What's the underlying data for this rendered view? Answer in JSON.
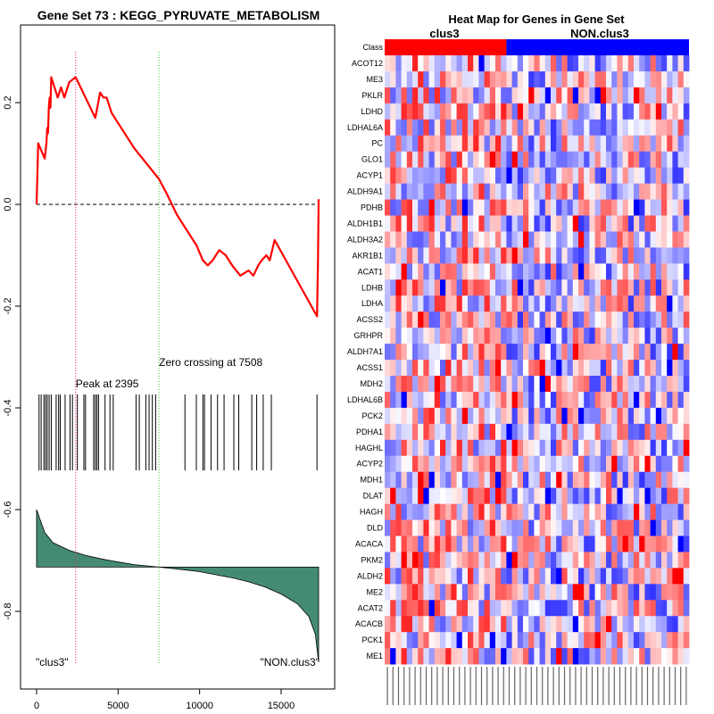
{
  "chart_data": [
    {
      "type": "line",
      "title": "Gene Set  73 : KEGG_PYRUVATE_METABOLISM",
      "xlim": [
        0,
        17400
      ],
      "ylim": [
        -0.92,
        0.32
      ],
      "x_ticks": [
        0,
        5000,
        10000,
        15000
      ],
      "y_ticks": [
        0.2,
        0.0,
        -0.2,
        -0.4,
        -0.6,
        -0.8
      ],
      "x_tick_labels": [
        "0",
        "5000",
        "10000",
        "15000"
      ],
      "y_tick_labels": [
        "0.2",
        "0.0",
        "-0.2",
        "-0.4",
        "-0.6",
        "-0.8"
      ],
      "enrichment_score_points": [
        [
          0,
          0
        ],
        [
          100,
          0.12
        ],
        [
          500,
          0.09
        ],
        [
          600,
          0.12
        ],
        [
          650,
          0.15
        ],
        [
          700,
          0.14
        ],
        [
          750,
          0.19
        ],
        [
          800,
          0.21
        ],
        [
          850,
          0.19
        ],
        [
          900,
          0.25
        ],
        [
          1300,
          0.21
        ],
        [
          1500,
          0.23
        ],
        [
          1700,
          0.21
        ],
        [
          2000,
          0.24
        ],
        [
          2395,
          0.25
        ],
        [
          2700,
          0.23
        ],
        [
          3000,
          0.21
        ],
        [
          3300,
          0.19
        ],
        [
          3600,
          0.17
        ],
        [
          3900,
          0.22
        ],
        [
          4100,
          0.21
        ],
        [
          4300,
          0.21
        ],
        [
          4600,
          0.18
        ],
        [
          5000,
          0.16
        ],
        [
          6000,
          0.11
        ],
        [
          7000,
          0.07
        ],
        [
          7508,
          0.05
        ],
        [
          8000,
          0.02
        ],
        [
          8600,
          -0.02
        ],
        [
          9200,
          -0.05
        ],
        [
          9800,
          -0.08
        ],
        [
          10200,
          -0.11
        ],
        [
          10500,
          -0.12
        ],
        [
          10800,
          -0.11
        ],
        [
          11000,
          -0.1
        ],
        [
          11200,
          -0.09
        ],
        [
          11600,
          -0.1
        ],
        [
          12000,
          -0.12
        ],
        [
          12500,
          -0.14
        ],
        [
          13000,
          -0.13
        ],
        [
          13300,
          -0.14
        ],
        [
          13600,
          -0.12
        ],
        [
          13800,
          -0.11
        ],
        [
          14100,
          -0.1
        ],
        [
          14300,
          -0.11
        ],
        [
          14600,
          -0.07
        ],
        [
          17200,
          -0.22
        ],
        [
          17260,
          -0.11
        ],
        [
          17300,
          0.01
        ]
      ],
      "peak": {
        "x": 2395,
        "label": "Peak at 2395"
      },
      "zero_crossing": {
        "x": 7508,
        "label": "Zero crossing at 7508"
      },
      "hit_positions": [
        150,
        280,
        450,
        550,
        650,
        770,
        900,
        1200,
        1350,
        1450,
        1750,
        2050,
        2200,
        2500,
        2900,
        3000,
        3500,
        3600,
        3700,
        3800,
        4200,
        4500,
        4700,
        6100,
        6300,
        6700,
        6900,
        7100,
        7300,
        9100,
        9800,
        10200,
        10300,
        10700,
        11100,
        11500,
        12100,
        12400,
        13200,
        13500,
        13900,
        14400,
        17200
      ],
      "ranked_metric_points": [
        [
          0,
          -0.6
        ],
        [
          500,
          -0.645
        ],
        [
          1000,
          -0.665
        ],
        [
          2000,
          -0.68
        ],
        [
          3000,
          -0.69
        ],
        [
          4000,
          -0.697
        ],
        [
          5000,
          -0.703
        ],
        [
          6000,
          -0.708
        ],
        [
          7500,
          -0.713
        ],
        [
          9000,
          -0.718
        ],
        [
          10000,
          -0.722
        ],
        [
          11000,
          -0.728
        ],
        [
          12000,
          -0.734
        ],
        [
          13000,
          -0.742
        ],
        [
          14000,
          -0.752
        ],
        [
          15000,
          -0.766
        ],
        [
          16000,
          -0.785
        ],
        [
          16700,
          -0.81
        ],
        [
          17100,
          -0.845
        ],
        [
          17300,
          -0.9
        ]
      ],
      "metric_baseline": -0.713,
      "left_label": "\"clus3\"",
      "right_label": "\"NON.clus3\"",
      "colors": {
        "es_line": "#ff0000",
        "fill": "#458b74",
        "peak_line": "#ff1493",
        "zero_line": "#32cd32"
      }
    },
    {
      "type": "heatmap",
      "title": "Heat Map for Genes in Gene Set",
      "class_row_label": "Class",
      "class_labels": [
        "clus3",
        "NON.clus3"
      ],
      "class_colors": [
        "#ff0000",
        "#0000ff"
      ],
      "class_split_fraction": 0.4,
      "n_columns": 55,
      "genes": [
        "ACOT12",
        "ME3",
        "PKLR",
        "LDHD",
        "LDHAL6A",
        "PC",
        "GLO1",
        "ACYP1",
        "ALDH9A1",
        "PDHB",
        "ALDH1B1",
        "ALDH3A2",
        "AKR1B1",
        "ACAT1",
        "LDHB",
        "LDHA",
        "ACSS2",
        "GRHPR",
        "ALDH7A1",
        "ACSS1",
        "MDH2",
        "LDHAL6B",
        "PCK2",
        "PDHA1",
        "HAGHL",
        "ACYP2",
        "MDH1",
        "DLAT",
        "HAGH",
        "DLD",
        "ACACA",
        "PKM2",
        "ALDH2",
        "ME2",
        "ACAT2",
        "ACACB",
        "PCK1",
        "ME1"
      ],
      "colormap": [
        "#0000ff",
        "#ffffff",
        "#ff0000"
      ]
    }
  ]
}
